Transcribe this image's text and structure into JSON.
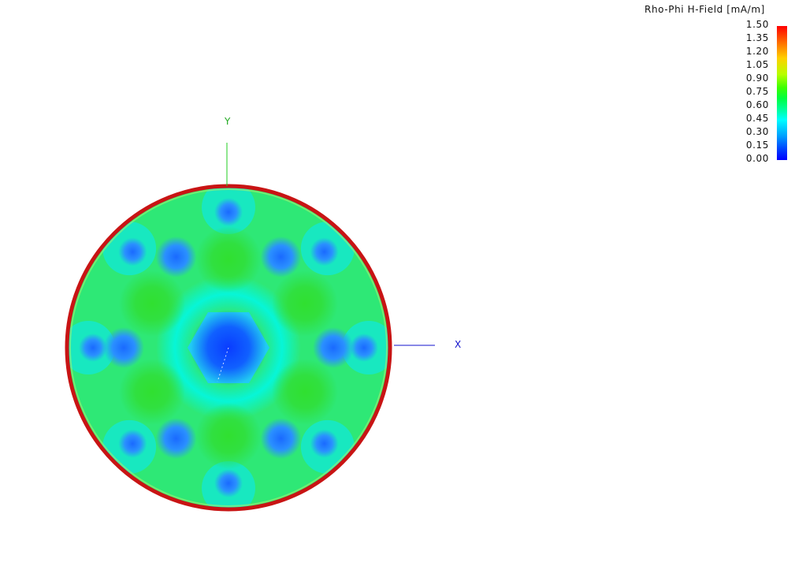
{
  "chart_data": {
    "type": "heatmap",
    "title": "Rho-Phi H-Field [mA/m]",
    "colorbar": {
      "min": 0.0,
      "max": 1.5,
      "ticks": [
        "1.50",
        "1.35",
        "1.20",
        "1.05",
        "0.90",
        "0.75",
        "0.60",
        "0.45",
        "0.30",
        "0.15",
        "0.00"
      ],
      "colors": [
        "#0000ff",
        "#00a0ff",
        "#00ffff",
        "#00ff80",
        "#3cff00",
        "#b8ff00",
        "#ffd000",
        "#ff6a00",
        "#ff0000"
      ]
    },
    "axes": {
      "x_label": "X",
      "y_label": "Y"
    },
    "field_regions": [
      {
        "region": "center",
        "value": 0.08
      },
      {
        "region": "inner-ring-hotspots",
        "count": 6,
        "value": 0.78
      },
      {
        "region": "inner-ring-low-spots",
        "count": 6,
        "value": 0.15
      },
      {
        "region": "outer-ring-low-spots",
        "count": 8,
        "value": 0.22
      },
      {
        "region": "background",
        "value": 0.6
      },
      {
        "region": "rim",
        "value": 1.5
      }
    ]
  }
}
